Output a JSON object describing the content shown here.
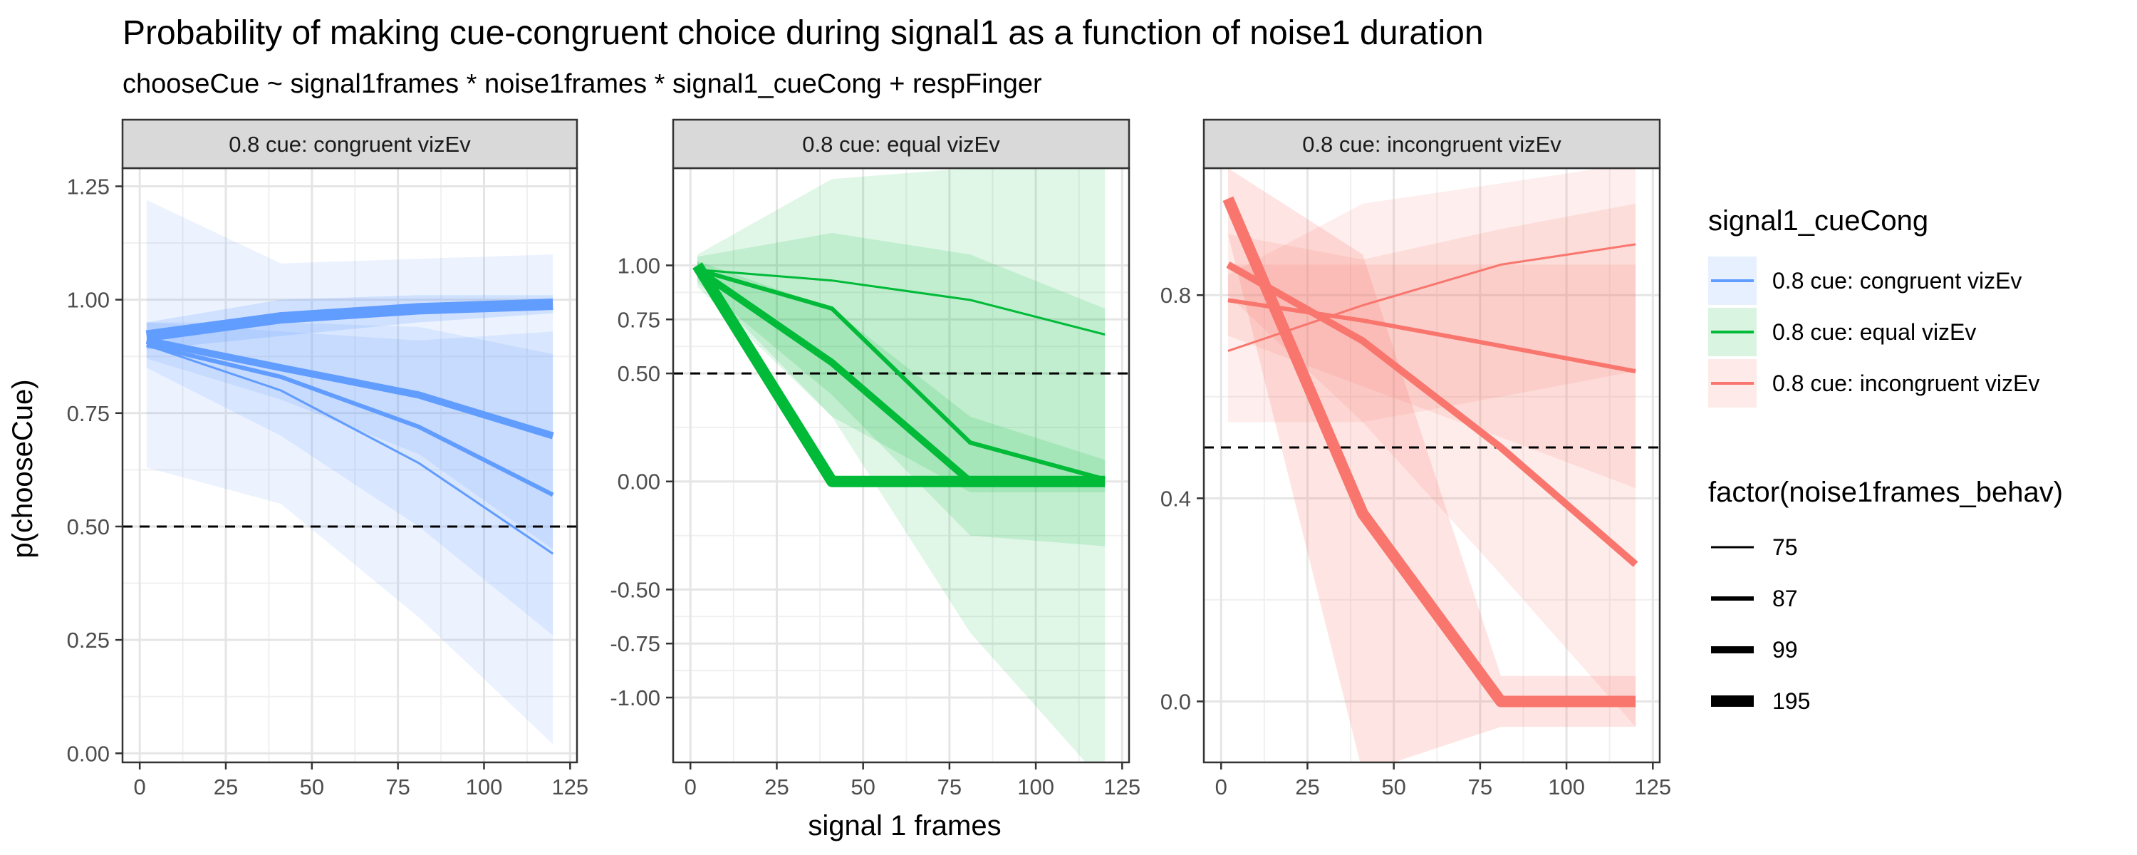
{
  "chart_data": {
    "type": "line",
    "title": "Probability of making cue-congruent choice during signal1 as a function of noise1 duration",
    "subtitle": "chooseCue ~ signal1frames * noise1frames * signal1_cueCong + respFinger",
    "xlabel": "signal 1 frames",
    "ylabel": "p(chooseCue)",
    "x_ticks": [
      "0",
      "25",
      "50",
      "75",
      "100",
      "125"
    ],
    "x_values": [
      2,
      41,
      81,
      120
    ],
    "reference_line_y": 0.5,
    "grid": true,
    "legend_position": "right",
    "colors": {
      "congruent": "#619CFF",
      "equal": "#00BA38",
      "incongruent": "#F8766D"
    },
    "legend": {
      "color_title": "signal1_cueCong",
      "color_entries": [
        "0.8 cue: congruent vizEv",
        "0.8 cue: equal vizEv",
        "0.8 cue: incongruent vizEv"
      ],
      "size_title": "factor(noise1frames_behav)",
      "size_entries": [
        "75",
        "87",
        "99",
        "195"
      ]
    },
    "panels": [
      {
        "strip": "0.8 cue: congruent vizEv",
        "color_key": "congruent",
        "y_range": [
          -0.02,
          1.29
        ],
        "y_ticks": [
          "0.00",
          "0.25",
          "0.50",
          "0.75",
          "1.00",
          "1.25"
        ],
        "y_tick_values": [
          0,
          0.25,
          0.5,
          0.75,
          1.0,
          1.25
        ],
        "series": [
          {
            "noise": "75",
            "y": [
              0.9,
              0.8,
              0.64,
              0.44
            ],
            "lo": [
              0.63,
              0.55,
              0.3,
              0.02
            ],
            "hi": [
              1.22,
              1.08,
              1.09,
              1.1
            ]
          },
          {
            "noise": "87",
            "y": [
              0.9,
              0.83,
              0.72,
              0.57
            ],
            "lo": [
              0.85,
              0.7,
              0.5,
              0.26
            ],
            "hi": [
              0.95,
              0.95,
              0.94,
              0.88
            ]
          },
          {
            "noise": "99",
            "y": [
              0.91,
              0.85,
              0.79,
              0.7
            ],
            "lo": [
              0.87,
              0.78,
              0.66,
              0.45
            ],
            "hi": [
              0.95,
              0.93,
              0.91,
              0.93
            ]
          },
          {
            "noise": "195",
            "y": [
              0.92,
              0.96,
              0.98,
              0.99
            ],
            "lo": [
              0.89,
              0.92,
              0.95,
              0.97
            ],
            "hi": [
              0.95,
              1.0,
              1.01,
              1.01
            ]
          }
        ]
      },
      {
        "strip": "0.8 cue: equal vizEv",
        "color_key": "equal",
        "y_range": [
          -1.3,
          1.45
        ],
        "y_ticks": [
          "-1.00",
          "-0.75",
          "-0.50",
          "0.00",
          "0.50",
          "0.75",
          "1.00"
        ],
        "y_tick_values": [
          -1.0,
          -0.75,
          -0.5,
          0,
          0.5,
          0.75,
          1.0
        ],
        "series": [
          {
            "noise": "75",
            "y": [
              0.98,
              0.93,
              0.84,
              0.68
            ],
            "lo": [
              0.9,
              0.3,
              -0.7,
              -1.4
            ],
            "hi": [
              1.05,
              1.4,
              1.45,
              1.45
            ]
          },
          {
            "noise": "87",
            "y": [
              0.98,
              0.8,
              0.18,
              0.01
            ],
            "lo": [
              0.92,
              0.4,
              -0.25,
              -0.3
            ],
            "hi": [
              1.04,
              1.15,
              1.05,
              0.8
            ]
          },
          {
            "noise": "99",
            "y": [
              0.98,
              0.55,
              0.0,
              0.0
            ],
            "lo": [
              0.94,
              0.3,
              -0.05,
              -0.05
            ],
            "hi": [
              1.02,
              0.8,
              0.3,
              0.1
            ]
          },
          {
            "noise": "195",
            "y": [
              1.0,
              0.0,
              0.0,
              0.0
            ],
            "lo": [
              0.98,
              -0.02,
              -0.02,
              -0.02
            ],
            "hi": [
              1.02,
              0.02,
              0.02,
              0.02
            ]
          }
        ]
      },
      {
        "strip": "0.8 cue: incongruent vizEv",
        "color_key": "incongruent",
        "y_range": [
          -0.12,
          1.05
        ],
        "y_ticks": [
          "0.0",
          "0.4",
          "0.8"
        ],
        "y_tick_values": [
          0,
          0.4,
          0.8
        ],
        "series": [
          {
            "noise": "75",
            "y": [
              0.69,
              0.78,
              0.86,
              0.9
            ],
            "lo": [
              0.55,
              0.55,
              0.6,
              0.65
            ],
            "hi": [
              0.84,
              0.98,
              1.02,
              1.06
            ]
          },
          {
            "noise": "87",
            "y": [
              0.79,
              0.75,
              0.7,
              0.65
            ],
            "lo": [
              0.72,
              0.62,
              0.52,
              0.42
            ],
            "hi": [
              0.86,
              0.86,
              0.86,
              0.86
            ]
          },
          {
            "noise": "99",
            "y": [
              0.86,
              0.71,
              0.5,
              0.27
            ],
            "lo": [
              0.8,
              0.55,
              0.25,
              -0.05
            ],
            "hi": [
              0.92,
              0.87,
              0.93,
              0.98
            ]
          },
          {
            "noise": "195",
            "y": [
              0.99,
              0.37,
              0.0,
              0.0
            ],
            "lo": [
              0.92,
              -0.14,
              -0.05,
              -0.05
            ],
            "hi": [
              1.05,
              0.88,
              0.05,
              0.05
            ]
          }
        ]
      }
    ]
  }
}
